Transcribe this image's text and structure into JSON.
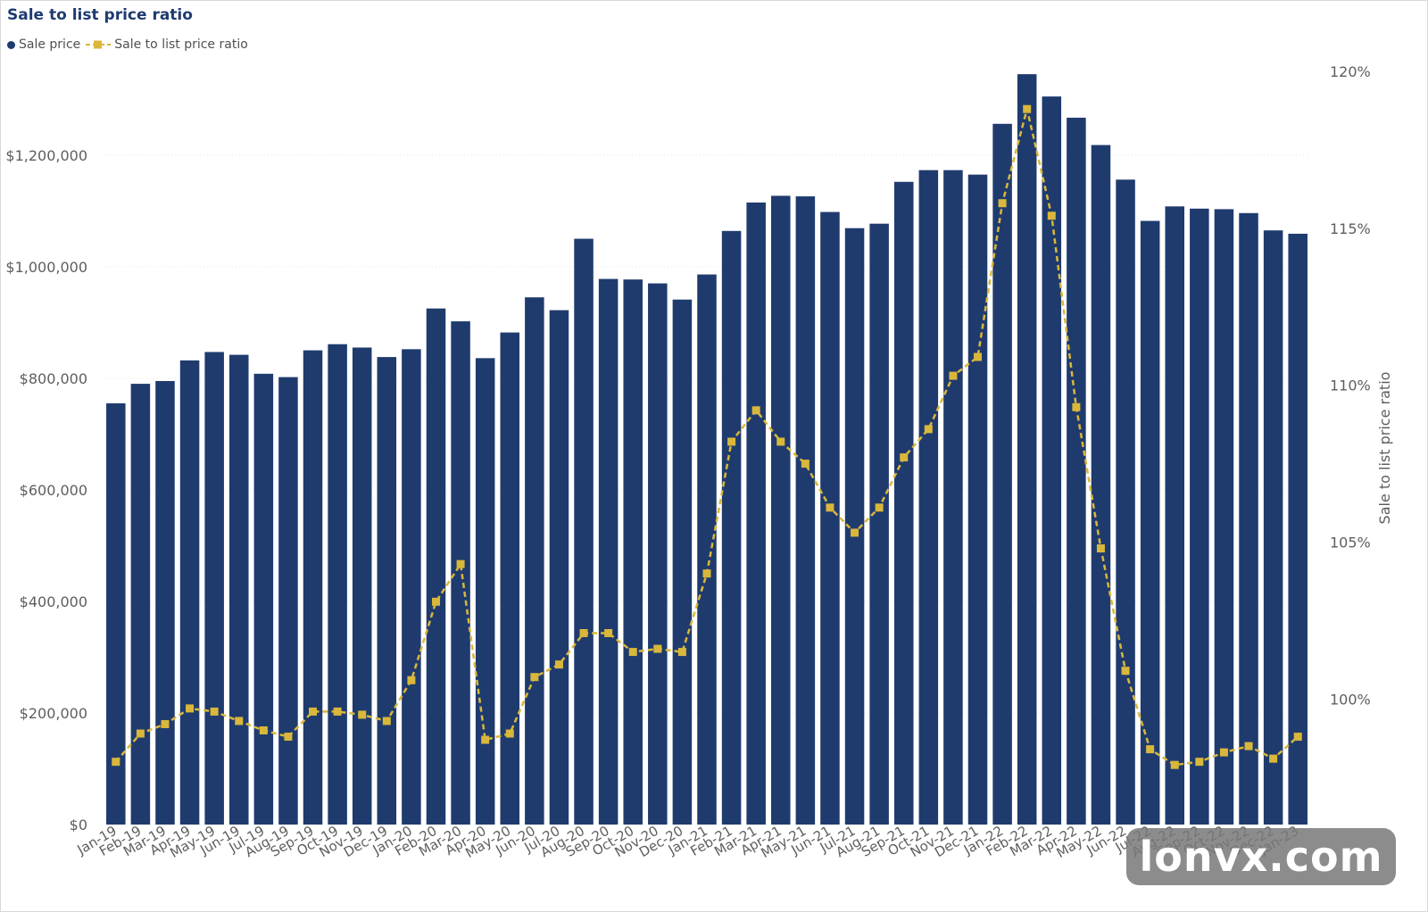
{
  "title": "Sale to list price ratio",
  "legend": {
    "sale_price_label": "Sale price",
    "ratio_label": "Sale to list price ratio"
  },
  "watermark": "lonvx.com",
  "colors": {
    "bar": "#1f3b6e",
    "line": "#d9b73b",
    "title": "#1f3b70",
    "tick_text": "#605e5c",
    "grid": "#e6e6e6"
  },
  "chart_data": {
    "type": "bar",
    "title": "Sale to list price ratio",
    "categories": [
      "Jan-19",
      "Feb-19",
      "Mar-19",
      "Apr-19",
      "May-19",
      "Jun-19",
      "Jul-19",
      "Aug-19",
      "Sep-19",
      "Oct-19",
      "Nov-19",
      "Dec-19",
      "Jan-20",
      "Feb-20",
      "Mar-20",
      "Apr-20",
      "May-20",
      "Jun-20",
      "Jul-20",
      "Aug-20",
      "Sep-20",
      "Oct-20",
      "Nov-20",
      "Dec-20",
      "Jan-21",
      "Feb-21",
      "Mar-21",
      "Apr-21",
      "May-21",
      "Jun-21",
      "Jul-21",
      "Aug-21",
      "Sep-21",
      "Oct-21",
      "Nov-21",
      "Dec-21",
      "Jan-22",
      "Feb-22",
      "Mar-22",
      "Apr-22",
      "May-22",
      "Jun-22",
      "Jul-22",
      "Aug-22",
      "Sep-22",
      "Oct-22",
      "Nov-22",
      "Dec-22",
      "Jan-23"
    ],
    "series": [
      {
        "name": "Sale price",
        "kind": "bar",
        "axis": "left",
        "values": [
          755000,
          790000,
          795000,
          832000,
          847000,
          842000,
          808000,
          802000,
          850000,
          861000,
          855000,
          838000,
          852000,
          925000,
          902000,
          836000,
          882000,
          945000,
          922000,
          1050000,
          978000,
          977000,
          970000,
          941000,
          986000,
          1064000,
          1115000,
          1127000,
          1126000,
          1098000,
          1069000,
          1077000,
          1152000,
          1173000,
          1173000,
          1165000,
          1256000,
          1345000,
          1305000,
          1267000,
          1218000,
          1156000,
          1082000,
          1108000,
          1104000,
          1103000,
          1096000,
          1065000,
          1059000
        ]
      },
      {
        "name": "Sale to list price ratio",
        "kind": "line",
        "axis": "right",
        "values": [
          98.0,
          98.9,
          99.2,
          99.7,
          99.6,
          99.3,
          99.0,
          98.8,
          99.6,
          99.6,
          99.5,
          99.3,
          100.6,
          103.1,
          104.3,
          98.7,
          98.9,
          100.7,
          101.1,
          102.1,
          102.1,
          101.5,
          101.6,
          101.5,
          104.0,
          108.2,
          109.2,
          108.2,
          107.5,
          106.1,
          105.3,
          106.1,
          107.7,
          108.6,
          110.3,
          110.9,
          115.8,
          118.8,
          115.4,
          109.3,
          104.8,
          100.9,
          98.4,
          97.9,
          98.0,
          98.3,
          98.5,
          98.1,
          98.8
        ]
      }
    ],
    "y_left": {
      "range": [
        0,
        1350000
      ],
      "ticks": [
        0,
        200000,
        400000,
        600000,
        800000,
        1000000,
        1200000
      ],
      "tick_labels": [
        "$0",
        "$200,000",
        "$400,000",
        "$600,000",
        "$800,000",
        "$1,000,000",
        "$1,200,000"
      ]
    },
    "y_right": {
      "label": "Sale to list price ratio",
      "range": [
        96,
        120
      ],
      "ticks": [
        100,
        105,
        110,
        115,
        120
      ],
      "tick_labels": [
        "100%",
        "105%",
        "110%",
        "115%",
        "120%"
      ]
    },
    "grid": true,
    "legend_position": "top-left"
  }
}
